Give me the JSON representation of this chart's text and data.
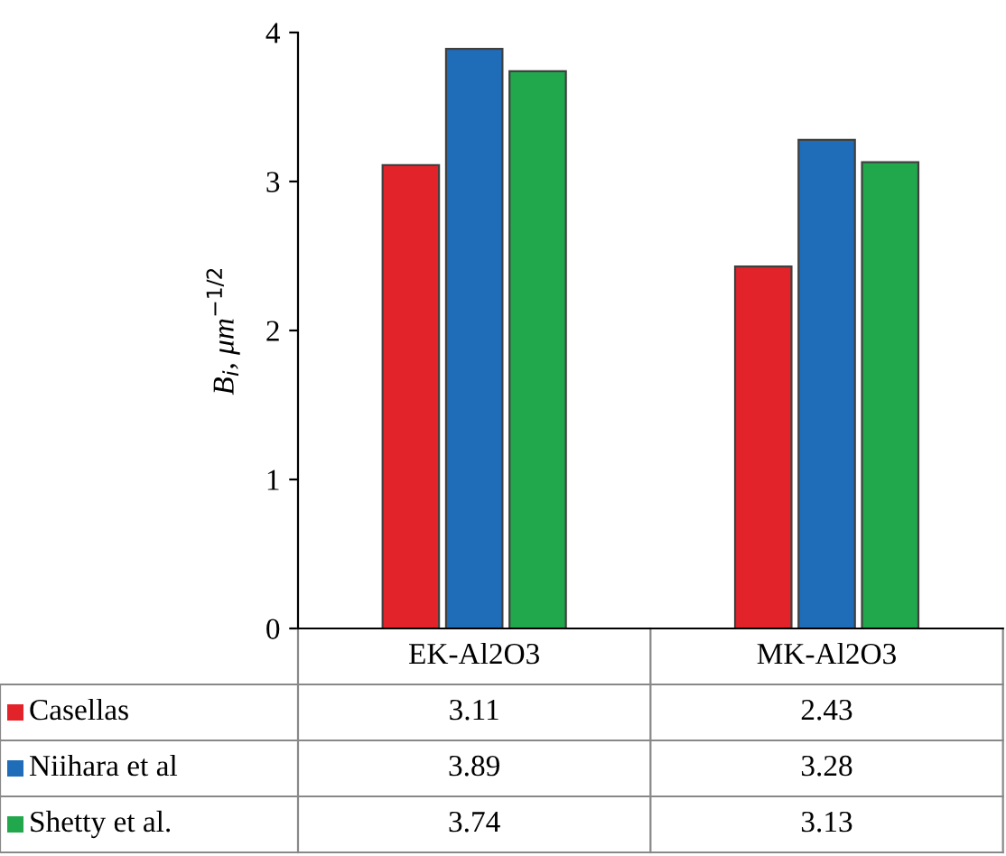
{
  "chart_data": {
    "type": "bar",
    "ylabel": "B$_{i}$, μm$^{−1/2}$",
    "categories": [
      "EK-Al2O3",
      "MK-Al2O3"
    ],
    "series": [
      {
        "name": "Casellas",
        "color": "#e3232a",
        "values": [
          3.11,
          2.43
        ]
      },
      {
        "name": "Niihara et al",
        "color": "#1f6cb8",
        "values": [
          3.89,
          3.28
        ]
      },
      {
        "name": "Shetty et al.",
        "color": "#21a84c",
        "values": [
          3.74,
          3.13
        ]
      }
    ],
    "ylim": [
      0,
      4
    ],
    "yticks": [
      0,
      1,
      2,
      3,
      4
    ],
    "grid": false,
    "legend": "bottom",
    "data_labels": true
  }
}
